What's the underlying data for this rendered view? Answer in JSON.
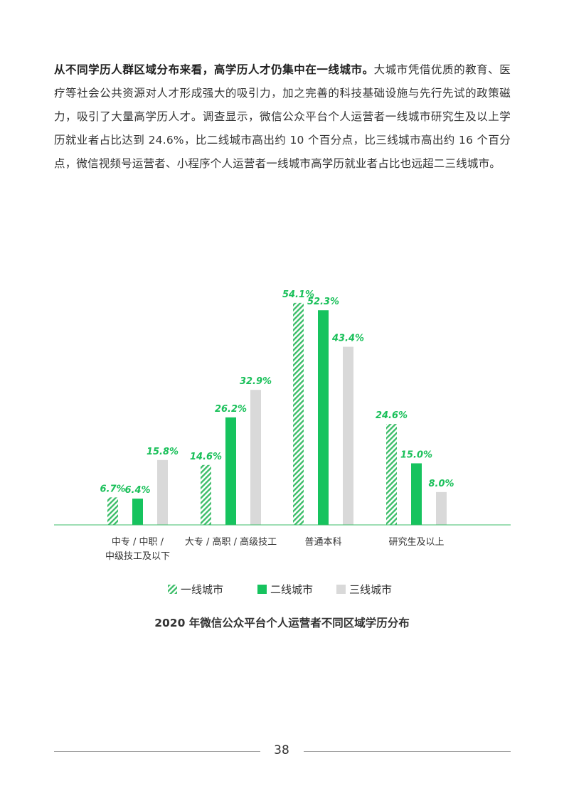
{
  "paragraph": {
    "bold": "从不同学历人群区域分布来看，高学历人才仍集中在一线城市。",
    "rest": "大城市凭借优质的教育、医疗等社会公共资源对人才形成强大的吸引力，加之完善的科技基础设施与先行先试的政策磁力，吸引了大量高学历人才。调查显示，微信公众平台个人运营者一线城市研究生及以上学历就业者占比达到 24.6%，比二线城市高出约 10 个百分点，比三线城市高出约 16 个百分点，微信视频号运营者、小程序个人运营者一线城市高学历就业者占比也远超二三线城市。"
  },
  "caption": "2020 年微信公众平台个人运营者不同区域学历分布",
  "page_number": "38",
  "colors": {
    "accent": "#1AC05A",
    "tier1": "#3DBE6A",
    "tier2": "#16C35E",
    "tier3": "#D9D9D9",
    "axis": "#3DBE6A"
  },
  "chart_data": {
    "type": "bar",
    "categories": [
      [
        "中专 / 中职 /",
        "中级技工及以下"
      ],
      [
        "大专 / 高职 / 高级技工"
      ],
      [
        "普通本科"
      ],
      [
        "研究生及以上"
      ]
    ],
    "series": [
      {
        "name": "一线城市",
        "pattern": "hatched",
        "values": [
          6.7,
          14.6,
          54.1,
          24.6
        ],
        "labels": [
          "6.7%",
          "14.6%",
          "54.1%",
          "24.6%"
        ]
      },
      {
        "name": "二线城市",
        "pattern": "solid",
        "values": [
          6.4,
          26.2,
          52.3,
          15.0
        ],
        "labels": [
          "6.4%",
          "26.2%",
          "52.3%",
          "15.0%"
        ]
      },
      {
        "name": "三线城市",
        "pattern": "solid-grey",
        "values": [
          15.8,
          32.9,
          43.4,
          8.0
        ],
        "labels": [
          "15.8%",
          "32.9%",
          "43.4%",
          "8.0%"
        ]
      }
    ],
    "ylim": [
      0,
      60
    ],
    "legend_position": "bottom-center",
    "grid": false,
    "title": ""
  }
}
